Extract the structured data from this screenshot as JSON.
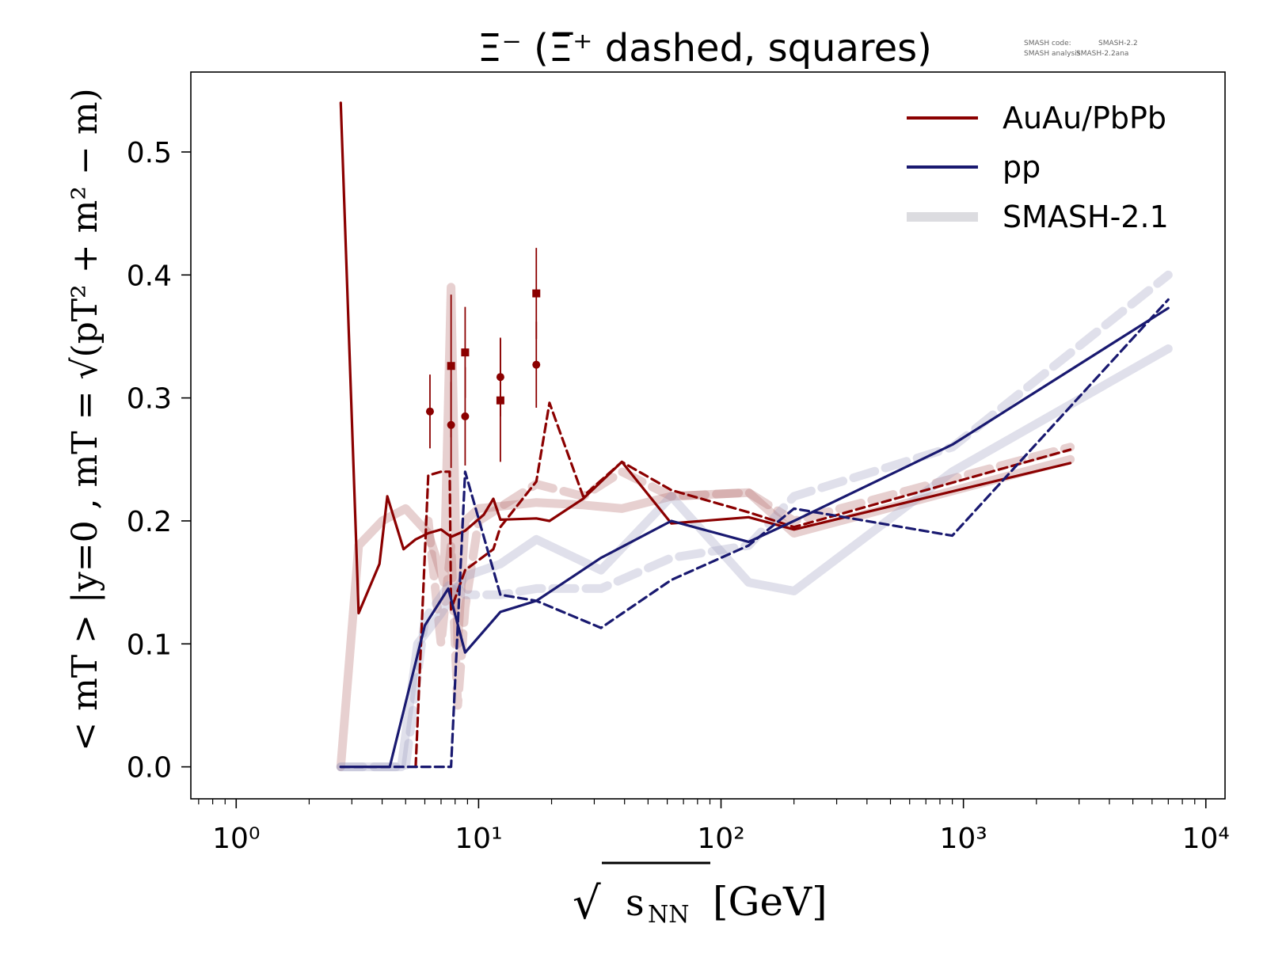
{
  "chart_data": {
    "type": "line",
    "title": "Ξ⁻ (Ξ̅⁺ dashed, squares)",
    "watermark": [
      {
        "label": "SMASH code:",
        "value": "SMASH-2.2"
      },
      {
        "label": "SMASH analysis:",
        "value": "SMASH-2.2ana"
      }
    ],
    "xscale": "log",
    "xlim": [
      0.65,
      12000
    ],
    "ylim": [
      -0.026,
      0.565
    ],
    "xticks": [
      {
        "value": 1,
        "label": "10⁰"
      },
      {
        "value": 10,
        "label": "10¹"
      },
      {
        "value": 100,
        "label": "10²"
      },
      {
        "value": 1000,
        "label": "10³"
      },
      {
        "value": 10000,
        "label": "10⁴"
      }
    ],
    "yticks": [
      {
        "value": 0.0,
        "label": "0.0"
      },
      {
        "value": 0.1,
        "label": "0.1"
      },
      {
        "value": 0.2,
        "label": "0.2"
      },
      {
        "value": 0.3,
        "label": "0.3"
      },
      {
        "value": 0.4,
        "label": "0.4"
      },
      {
        "value": 0.5,
        "label": "0.5"
      }
    ],
    "xlabel": {
      "base": "√",
      "sub": "NN",
      "main": "s",
      "suffix": "[GeV]"
    },
    "ylabel": "< mT > |y=0 , mT = √(pT² + m² − m)",
    "legend": {
      "position": "top-right",
      "entries": [
        {
          "label": "AuAu/PbPb",
          "color": "#8b0000",
          "style": "solid"
        },
        {
          "label": "pp",
          "color": "#191970",
          "style": "solid"
        },
        {
          "label": "SMASH-2.1",
          "color": "#dcdce0",
          "style": "thick"
        }
      ]
    },
    "series": [
      {
        "name": "AuAu/PbPb",
        "kind": "experiment",
        "color": "#8b0000",
        "style": "solid",
        "points": [
          [
            2.7,
            0.54
          ],
          [
            3.2,
            0.125
          ],
          [
            3.9,
            0.165
          ],
          [
            4.2,
            0.22
          ],
          [
            4.9,
            0.177
          ],
          [
            5.5,
            0.185
          ],
          [
            6.2,
            0.19
          ],
          [
            7.0,
            0.193
          ],
          [
            7.7,
            0.187
          ],
          [
            8.8,
            0.192
          ],
          [
            10.5,
            0.205
          ],
          [
            11.5,
            0.218
          ],
          [
            12.3,
            0.201
          ],
          [
            17.3,
            0.202
          ],
          [
            19.6,
            0.2
          ],
          [
            27,
            0.218
          ],
          [
            39,
            0.248
          ],
          [
            62.4,
            0.198
          ],
          [
            130,
            0.203
          ],
          [
            200,
            0.193
          ],
          [
            2760,
            0.247
          ]
        ]
      },
      {
        "name": "Ξ̅⁺ AuAu/PbPb",
        "kind": "experiment",
        "color": "#8b0000",
        "style": "dashed",
        "points": [
          [
            5.5,
            0.0
          ],
          [
            6.2,
            0.237
          ],
          [
            7.0,
            0.24
          ],
          [
            7.6,
            0.24
          ],
          [
            7.7,
            0.128
          ],
          [
            8.8,
            0.16
          ],
          [
            11.5,
            0.177
          ],
          [
            12.3,
            0.195
          ],
          [
            17.3,
            0.232
          ],
          [
            19.6,
            0.296
          ],
          [
            27,
            0.22
          ],
          [
            39,
            0.248
          ],
          [
            62.4,
            0.225
          ],
          [
            130,
            0.207
          ],
          [
            200,
            0.195
          ],
          [
            2760,
            0.258
          ]
        ]
      },
      {
        "name": "pp",
        "kind": "experiment",
        "color": "#191970",
        "style": "solid",
        "points": [
          [
            2.7,
            0.0
          ],
          [
            4.3,
            0.0
          ],
          [
            5.0,
            0.052
          ],
          [
            6.0,
            0.115
          ],
          [
            7.5,
            0.145
          ],
          [
            8.8,
            0.093
          ],
          [
            12.3,
            0.126
          ],
          [
            17.3,
            0.135
          ],
          [
            32,
            0.17
          ],
          [
            62.4,
            0.2
          ],
          [
            130,
            0.183
          ],
          [
            200,
            0.2
          ],
          [
            900,
            0.262
          ],
          [
            7000,
            0.373
          ]
        ]
      },
      {
        "name": "Ξ̅⁺ pp",
        "kind": "experiment",
        "color": "#191970",
        "style": "dashed",
        "points": [
          [
            2.7,
            0.0
          ],
          [
            7.7,
            0.0
          ],
          [
            8.8,
            0.24
          ],
          [
            12.3,
            0.14
          ],
          [
            17.3,
            0.135
          ],
          [
            32,
            0.113
          ],
          [
            62.4,
            0.152
          ],
          [
            130,
            0.18
          ],
          [
            200,
            0.21
          ],
          [
            900,
            0.188
          ],
          [
            7000,
            0.38
          ]
        ]
      },
      {
        "name": "SMASH-2.1",
        "kind": "model",
        "color": "#b56e6e",
        "style": "thick",
        "points": [
          [
            2.7,
            0.0
          ],
          [
            3.2,
            0.18
          ],
          [
            4.0,
            0.2
          ],
          [
            5.0,
            0.21
          ],
          [
            6.2,
            0.19
          ],
          [
            7.2,
            0.15
          ],
          [
            7.7,
            0.39
          ],
          [
            8.2,
            0.1
          ],
          [
            8.8,
            0.2
          ],
          [
            10,
            0.21
          ],
          [
            17.3,
            0.215
          ],
          [
            27,
            0.213
          ],
          [
            39,
            0.21
          ],
          [
            62.4,
            0.22
          ],
          [
            130,
            0.223
          ],
          [
            200,
            0.19
          ],
          [
            2760,
            0.25
          ]
        ]
      },
      {
        "name": "SMASH-2.1 Ξ̅⁺",
        "kind": "model",
        "color": "#b56e6e",
        "style": "thickdashed",
        "points": [
          [
            6.2,
            0.2
          ],
          [
            7.0,
            0.1
          ],
          [
            7.7,
            0.18
          ],
          [
            8.2,
            0.05
          ],
          [
            8.8,
            0.13
          ],
          [
            10,
            0.2
          ],
          [
            17.3,
            0.23
          ],
          [
            27,
            0.22
          ],
          [
            39,
            0.24
          ],
          [
            62.4,
            0.22
          ],
          [
            130,
            0.223
          ],
          [
            200,
            0.2
          ],
          [
            2760,
            0.26
          ]
        ]
      },
      {
        "name": "SMASH-2.1 pp",
        "kind": "model",
        "color": "#9e9ec0",
        "style": "thick",
        "points": [
          [
            2.7,
            0.0
          ],
          [
            4.8,
            0.0
          ],
          [
            5.6,
            0.1
          ],
          [
            7.0,
            0.125
          ],
          [
            8.8,
            0.155
          ],
          [
            12.3,
            0.165
          ],
          [
            17.3,
            0.185
          ],
          [
            32,
            0.16
          ],
          [
            62.4,
            0.22
          ],
          [
            130,
            0.15
          ],
          [
            200,
            0.143
          ],
          [
            900,
            0.24
          ],
          [
            7000,
            0.34
          ]
        ]
      },
      {
        "name": "SMASH-2.1 pp Ξ̅⁺",
        "kind": "model",
        "color": "#9e9ec0",
        "style": "thickdashed",
        "points": [
          [
            2.7,
            0.0
          ],
          [
            5.0,
            0.0
          ],
          [
            6.0,
            0.12
          ],
          [
            7.7,
            0.15
          ],
          [
            8.8,
            0.14
          ],
          [
            12.3,
            0.14
          ],
          [
            17.3,
            0.145
          ],
          [
            32,
            0.145
          ],
          [
            62.4,
            0.17
          ],
          [
            130,
            0.18
          ],
          [
            200,
            0.22
          ],
          [
            900,
            0.26
          ],
          [
            7000,
            0.4
          ]
        ]
      }
    ],
    "data_points": [
      {
        "x": 6.3,
        "y": 0.289,
        "err": 0.03,
        "marker": "circle"
      },
      {
        "x": 7.7,
        "y": 0.278,
        "err": 0.035,
        "marker": "circle"
      },
      {
        "x": 7.7,
        "y": 0.326,
        "err": 0.058,
        "marker": "square"
      },
      {
        "x": 8.8,
        "y": 0.285,
        "err": 0.04,
        "marker": "circle"
      },
      {
        "x": 8.8,
        "y": 0.337,
        "err": 0.037,
        "marker": "square"
      },
      {
        "x": 12.3,
        "y": 0.317,
        "err": 0.032,
        "marker": "circle"
      },
      {
        "x": 12.3,
        "y": 0.298,
        "err": 0.05,
        "marker": "square"
      },
      {
        "x": 17.3,
        "y": 0.327,
        "err": 0.035,
        "marker": "circle"
      },
      {
        "x": 17.3,
        "y": 0.385,
        "err": 0.037,
        "marker": "square"
      }
    ]
  }
}
